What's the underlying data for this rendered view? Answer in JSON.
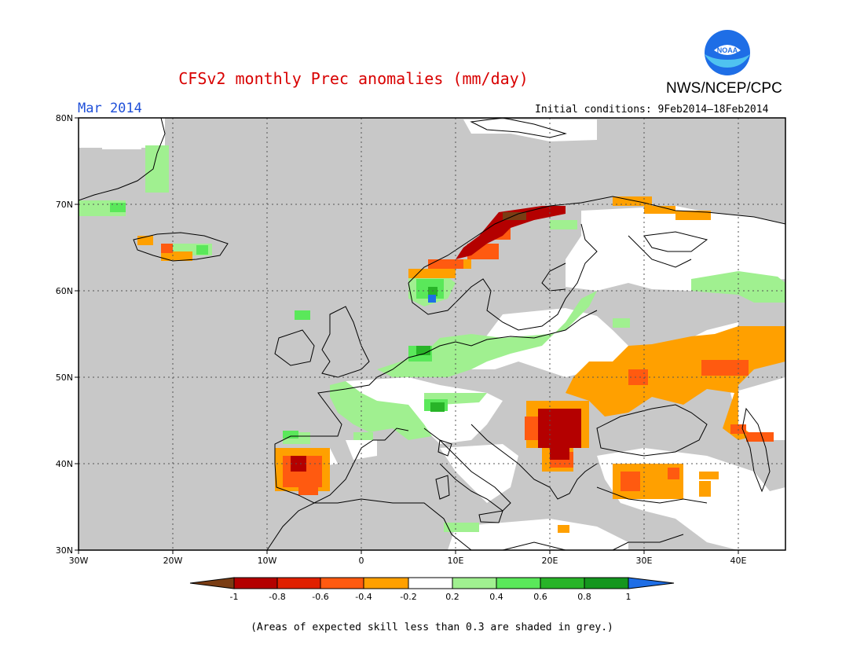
{
  "header": {
    "title": "CFSv2 monthly Prec anomalies (mm/day)",
    "agency": "NWS/NCEP/CPC",
    "logo_text": "NOAA",
    "period": "Mar 2014",
    "initial_conditions": "Initial conditions: 9Feb2014—18Feb2014"
  },
  "footnote": "(Areas of expected skill less than 0.3 are shaded in grey.)",
  "map": {
    "lon_range": [
      -30,
      45
    ],
    "lat_range": [
      30,
      80
    ],
    "lon_ticks": [
      "30W",
      "20W",
      "10W",
      "0",
      "10E",
      "20E",
      "30E",
      "40E"
    ],
    "lat_ticks": [
      "80N",
      "70N",
      "60N",
      "50N",
      "40N",
      "30N"
    ],
    "low_skill_color": "#c8c8c8",
    "grid": "dotted"
  },
  "legend": {
    "boundaries": [
      "-1",
      "-0.8",
      "-0.6",
      "-0.4",
      "-0.2",
      "0.2",
      "0.4",
      "0.6",
      "0.8",
      "1"
    ],
    "colors": [
      "#7a3d14",
      "#b40000",
      "#e02000",
      "#ff5a10",
      "#ffa000",
      "#ffffff",
      "#a0f090",
      "#5ae85a",
      "#28b428",
      "#14961e",
      "#1e6ee6"
    ]
  },
  "anomaly_regions": [
    {
      "name": "Balkans",
      "category": "-1 to -0.8"
    },
    {
      "name": "Norway coast",
      "category": "-1 to -0.6"
    },
    {
      "name": "Iberia",
      "category": "-1 to -0.4"
    },
    {
      "name": "Ukraine / SW Russia",
      "category": "-0.4 to -0.2"
    },
    {
      "name": "Western Turkey",
      "category": "-0.6 to -0.2"
    },
    {
      "name": "France / Germany",
      "category": "0.2 to 0.6"
    },
    {
      "name": "Southern Norway",
      "category": "0.2 to 1"
    }
  ]
}
